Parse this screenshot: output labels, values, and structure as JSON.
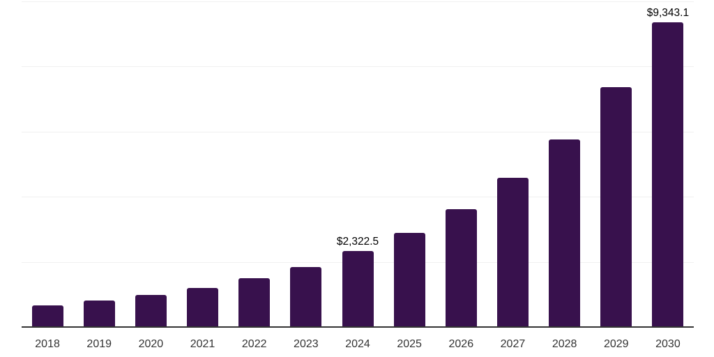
{
  "chart_data": {
    "type": "bar",
    "title": "",
    "xlabel": "",
    "ylabel": "",
    "categories": [
      "2018",
      "2019",
      "2020",
      "2021",
      "2022",
      "2023",
      "2024",
      "2025",
      "2026",
      "2027",
      "2028",
      "2029",
      "2030"
    ],
    "values": [
      655,
      810,
      990,
      1205,
      1495,
      1845,
      2322.5,
      2890,
      3620,
      4570,
      5745,
      7365,
      9343.1
    ],
    "data_labels": [
      {
        "category": "2024",
        "text": "$2,322.5"
      },
      {
        "category": "2030",
        "text": "$9,343.1"
      }
    ],
    "ylim": [
      0,
      10000
    ],
    "gridline_step": 2000,
    "grid": true,
    "legend_position": "none",
    "colors": {
      "bar": "#38114D",
      "gridline": "#F0F0F0",
      "axis": "#333333",
      "data_label": "#000000",
      "tick_label": "#333333",
      "background": "#FFFFFF"
    }
  }
}
